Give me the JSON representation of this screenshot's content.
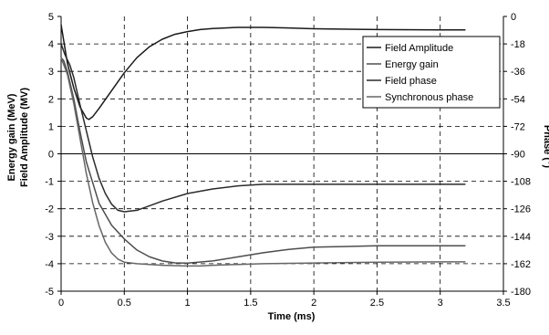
{
  "chart_data": {
    "type": "line",
    "title": "",
    "xlabel": "Time (ms)",
    "ylabel_lines": [
      "Energy gain (MeV)",
      "Field Amplitude (MV)"
    ],
    "y2label": "Phase (°)",
    "xlim": [
      0,
      3.5
    ],
    "ylim": [
      -5,
      5
    ],
    "y2lim": [
      -180,
      0
    ],
    "x_ticks": [
      "0",
      "0.5",
      "1",
      "1.5",
      "2",
      "2.5",
      "3",
      "3.5"
    ],
    "y_ticks": [
      "-5",
      "-4",
      "-3",
      "-2",
      "-1",
      "0",
      "1",
      "2",
      "3",
      "4",
      "5"
    ],
    "y2_ticks": [
      "-180",
      "-162",
      "-144",
      "-126",
      "-108",
      "-90",
      "-72",
      "-54",
      "-36",
      "-18",
      "0"
    ],
    "grid": true,
    "legend_position": "top-right",
    "series": [
      {
        "name": "Field Amplitude",
        "axis": "left",
        "color": "#1a1a1a",
        "x": [
          0,
          0.05,
          0.1,
          0.15,
          0.2,
          0.22,
          0.25,
          0.3,
          0.4,
          0.5,
          0.6,
          0.7,
          0.8,
          0.9,
          1.0,
          1.1,
          1.2,
          1.4,
          1.6,
          1.8,
          2.0,
          2.5,
          3.0,
          3.2
        ],
        "values": [
          4.7,
          3.3,
          2.4,
          1.7,
          1.3,
          1.25,
          1.35,
          1.65,
          2.3,
          2.95,
          3.5,
          3.9,
          4.17,
          4.35,
          4.45,
          4.52,
          4.56,
          4.6,
          4.6,
          4.58,
          4.55,
          4.52,
          4.51,
          4.51
        ]
      },
      {
        "name": "Energy gain",
        "axis": "left",
        "color": "#4d4d4d",
        "x": [
          0,
          0.02,
          0.05,
          0.1,
          0.15,
          0.2,
          0.3,
          0.4,
          0.5,
          0.6,
          0.7,
          0.8,
          0.9,
          1.0,
          1.2,
          1.4,
          1.6,
          1.8,
          2.0,
          2.5,
          3.0,
          3.2
        ],
        "values": [
          3.5,
          3.4,
          3.0,
          2.0,
          0.8,
          -0.3,
          -1.8,
          -2.6,
          -3.1,
          -3.5,
          -3.75,
          -3.9,
          -3.97,
          -3.98,
          -3.9,
          -3.75,
          -3.6,
          -3.48,
          -3.4,
          -3.35,
          -3.35,
          -3.35
        ]
      },
      {
        "name": "Field phase",
        "axis": "right",
        "color": "#2b2b2b",
        "x": [
          0,
          0.03,
          0.07,
          0.1,
          0.15,
          0.2,
          0.25,
          0.3,
          0.35,
          0.4,
          0.45,
          0.5,
          0.6,
          0.7,
          0.8,
          1.0,
          1.2,
          1.4,
          1.6,
          2.0,
          2.5,
          3.0,
          3.2
        ],
        "values": [
          -18,
          -25,
          -32,
          -40,
          -58,
          -75,
          -92,
          -106,
          -116,
          -123,
          -127,
          -128,
          -127,
          -124,
          -121,
          -116,
          -113,
          -111,
          -110,
          -110,
          -110,
          -110,
          -110
        ]
      },
      {
        "name": "Synchronous phase",
        "axis": "right",
        "color": "#666666",
        "x": [
          0,
          0.05,
          0.1,
          0.15,
          0.2,
          0.25,
          0.3,
          0.35,
          0.4,
          0.45,
          0.5,
          0.6,
          0.8,
          1.0,
          1.1,
          1.2,
          1.4,
          1.6,
          2.0,
          2.5,
          3.0,
          3.2
        ],
        "values": [
          -27,
          -38,
          -57,
          -80,
          -103,
          -122,
          -137,
          -148,
          -155,
          -159,
          -161,
          -162,
          -163,
          -163.5,
          -163.5,
          -163,
          -162.5,
          -162,
          -161.5,
          -161,
          -160.8,
          -160.8
        ]
      }
    ]
  }
}
